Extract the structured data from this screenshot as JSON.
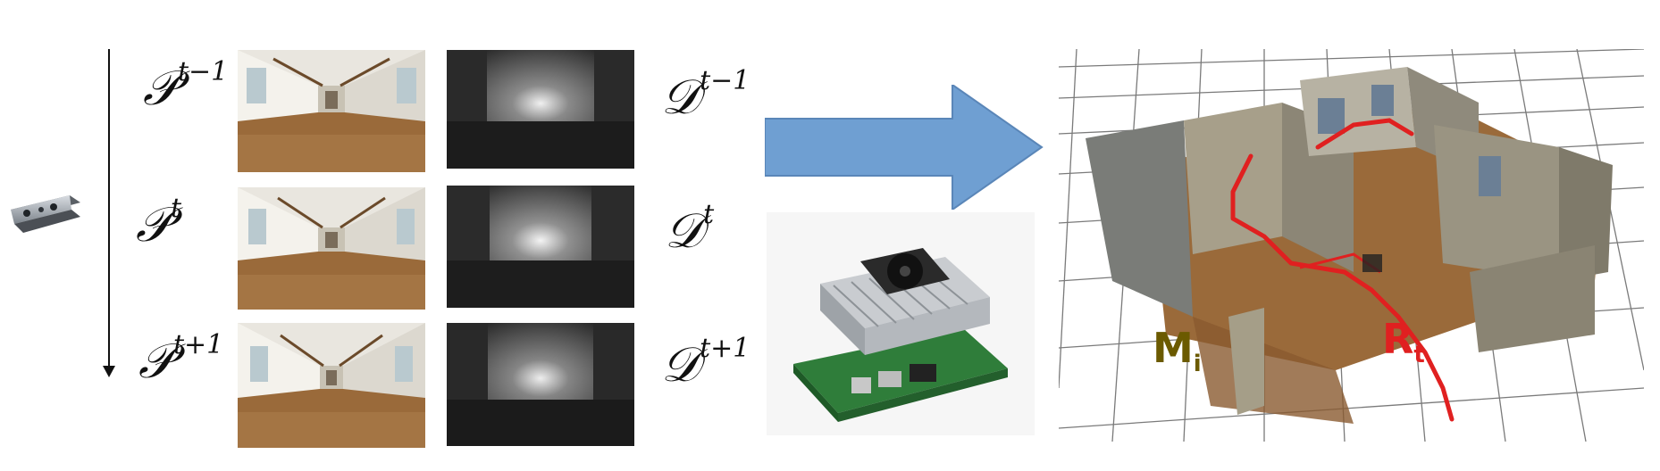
{
  "sequence": {
    "rows": [
      {
        "p_base": "𝒫",
        "p_sup": "t−1",
        "d_base": "𝒟",
        "d_sup": "t−1"
      },
      {
        "p_base": "𝒫",
        "p_sup": "t",
        "d_base": "𝒟",
        "d_sup": "t"
      },
      {
        "p_base": "𝒫",
        "p_sup": "t+1",
        "d_base": "𝒟",
        "d_sup": "t+1"
      }
    ]
  },
  "map": {
    "map_label_base": "M",
    "map_label_sub": "i",
    "robot_label_base": "R",
    "robot_label_sub": "t",
    "map_label_color": "#6b5a00",
    "robot_label_color": "#e02020",
    "trajectory_color": "#e02020"
  },
  "colors": {
    "arrow_fill": "#6f9fd2",
    "arrow_stroke": "#5a86b8",
    "floor_wood": "#9a6a3a",
    "depth_dark": "#1a1a1a",
    "pcb_green": "#2f7d3a"
  },
  "icons": [
    "depth-camera-icon",
    "embedded-board-icon",
    "time-axis-arrow"
  ]
}
